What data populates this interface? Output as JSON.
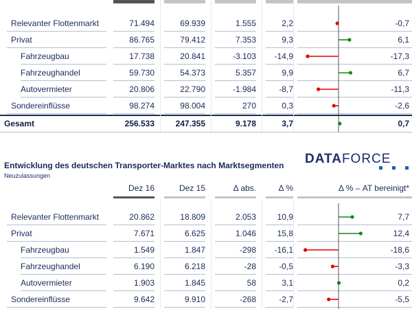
{
  "table1": {
    "rows": [
      {
        "label": "Relevanter Flottenmarkt",
        "indent": 1,
        "a": "71.494",
        "b": "69.939",
        "abs": "1.555",
        "pct": "2,2",
        "adj": "-0,7",
        "adj_value": -0.7,
        "color": "#e00000"
      },
      {
        "label": "Privat",
        "indent": 1,
        "a": "86.765",
        "b": "79.412",
        "abs": "7.353",
        "pct": "9,3",
        "adj": "6,1",
        "adj_value": 6.1,
        "color": "#118811"
      },
      {
        "label": "Fahrzeugbau",
        "indent": 2,
        "a": "17.738",
        "b": "20.841",
        "abs": "-3.103",
        "pct": "-14,9",
        "adj": "-17,3",
        "adj_value": -17.3,
        "color": "#e00000"
      },
      {
        "label": "Fahrzeughandel",
        "indent": 2,
        "a": "59.730",
        "b": "54.373",
        "abs": "5.357",
        "pct": "9,9",
        "adj": "6,7",
        "adj_value": 6.7,
        "color": "#118811"
      },
      {
        "label": "Autovermieter",
        "indent": 2,
        "a": "20.806",
        "b": "22.790",
        "abs": "-1.984",
        "pct": "-8,7",
        "adj": "-11,3",
        "adj_value": -11.3,
        "color": "#e00000"
      },
      {
        "label": "Sondereinflüsse",
        "indent": 1,
        "a": "98.274",
        "b": "98.004",
        "abs": "270",
        "pct": "0,3",
        "adj": "-2,6",
        "adj_value": -2.6,
        "color": "#e00000"
      }
    ],
    "total": {
      "label": "Gesamt",
      "a": "256.533",
      "b": "247.355",
      "abs": "9.178",
      "pct": "3,7",
      "adj": "0,7",
      "adj_value": 0.7,
      "color": "#118811"
    }
  },
  "section2": {
    "title": "Entwicklung des deutschen Transporter-Marktes nach Marktsegmenten",
    "subtitle": "Neuzulassungen",
    "logo_bold": "DATA",
    "logo_light": "FORCE",
    "headers": {
      "a": "Dez 16",
      "b": "Dez 15",
      "abs": "Δ abs.",
      "pct": "Δ %",
      "adj": "Δ % – AT bereinigt*"
    }
  },
  "table2": {
    "rows": [
      {
        "label": "Relevanter Flottenmarkt",
        "indent": 1,
        "a": "20.862",
        "b": "18.809",
        "abs": "2.053",
        "pct": "10,9",
        "adj": "7,7",
        "adj_value": 7.7,
        "color": "#118811"
      },
      {
        "label": "Privat",
        "indent": 1,
        "a": "7.671",
        "b": "6.625",
        "abs": "1.046",
        "pct": "15,8",
        "adj": "12,4",
        "adj_value": 12.4,
        "color": "#118811"
      },
      {
        "label": "Fahrzeugbau",
        "indent": 2,
        "a": "1.549",
        "b": "1.847",
        "abs": "-298",
        "pct": "-16,1",
        "adj": "-18,6",
        "adj_value": -18.6,
        "color": "#e00000"
      },
      {
        "label": "Fahrzeughandel",
        "indent": 2,
        "a": "6.190",
        "b": "6.218",
        "abs": "-28",
        "pct": "-0,5",
        "adj": "-3,3",
        "adj_value": -3.3,
        "color": "#e00000"
      },
      {
        "label": "Autovermieter",
        "indent": 2,
        "a": "1.903",
        "b": "1.845",
        "abs": "58",
        "pct": "3,1",
        "adj": "0,2",
        "adj_value": 0.2,
        "color": "#118811"
      },
      {
        "label": "Sondereinflüsse",
        "indent": 1,
        "a": "9.642",
        "b": "9.910",
        "abs": "-268",
        "pct": "-2,7",
        "adj": "-5,5",
        "adj_value": -5.5,
        "color": "#e00000"
      }
    ]
  }
}
